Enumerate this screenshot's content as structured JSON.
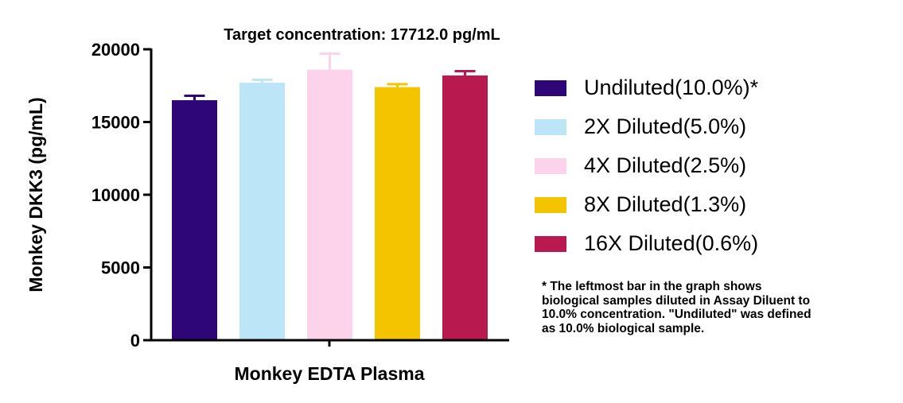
{
  "chart_data": {
    "type": "bar",
    "title": "Target concentration: 17712.0 pg/mL",
    "xlabel": "Monkey EDTA Plasma",
    "ylabel": "Monkey DKK3 (pg/mL)",
    "ylim": [
      0,
      20000
    ],
    "yticks": [
      "0",
      "5000",
      "10000",
      "15000",
      "20000"
    ],
    "grid": false,
    "legend_position": "right",
    "series": [
      {
        "name": "Undiluted(10.0%)*",
        "value": 16500,
        "error": 300,
        "color": "#2e0678"
      },
      {
        "name": "2X Diluted(5.0%)",
        "value": 17700,
        "error": 200,
        "color": "#bde5f8"
      },
      {
        "name": "4X Diluted(2.5%)",
        "value": 18600,
        "error": 1100,
        "color": "#fcd3ea"
      },
      {
        "name": "8X Diluted(1.3%)",
        "value": 17400,
        "error": 200,
        "color": "#f5c400"
      },
      {
        "name": "16X Diluted(0.6%)",
        "value": 18200,
        "error": 300,
        "color": "#b81a50"
      }
    ]
  },
  "footnote": {
    "lines": [
      "* The leftmost bar in the graph shows",
      "biological samples diluted in Assay Diluent to",
      "10.0% concentration. \"Undiluted\" was defined",
      "as 10.0% biological sample."
    ]
  }
}
